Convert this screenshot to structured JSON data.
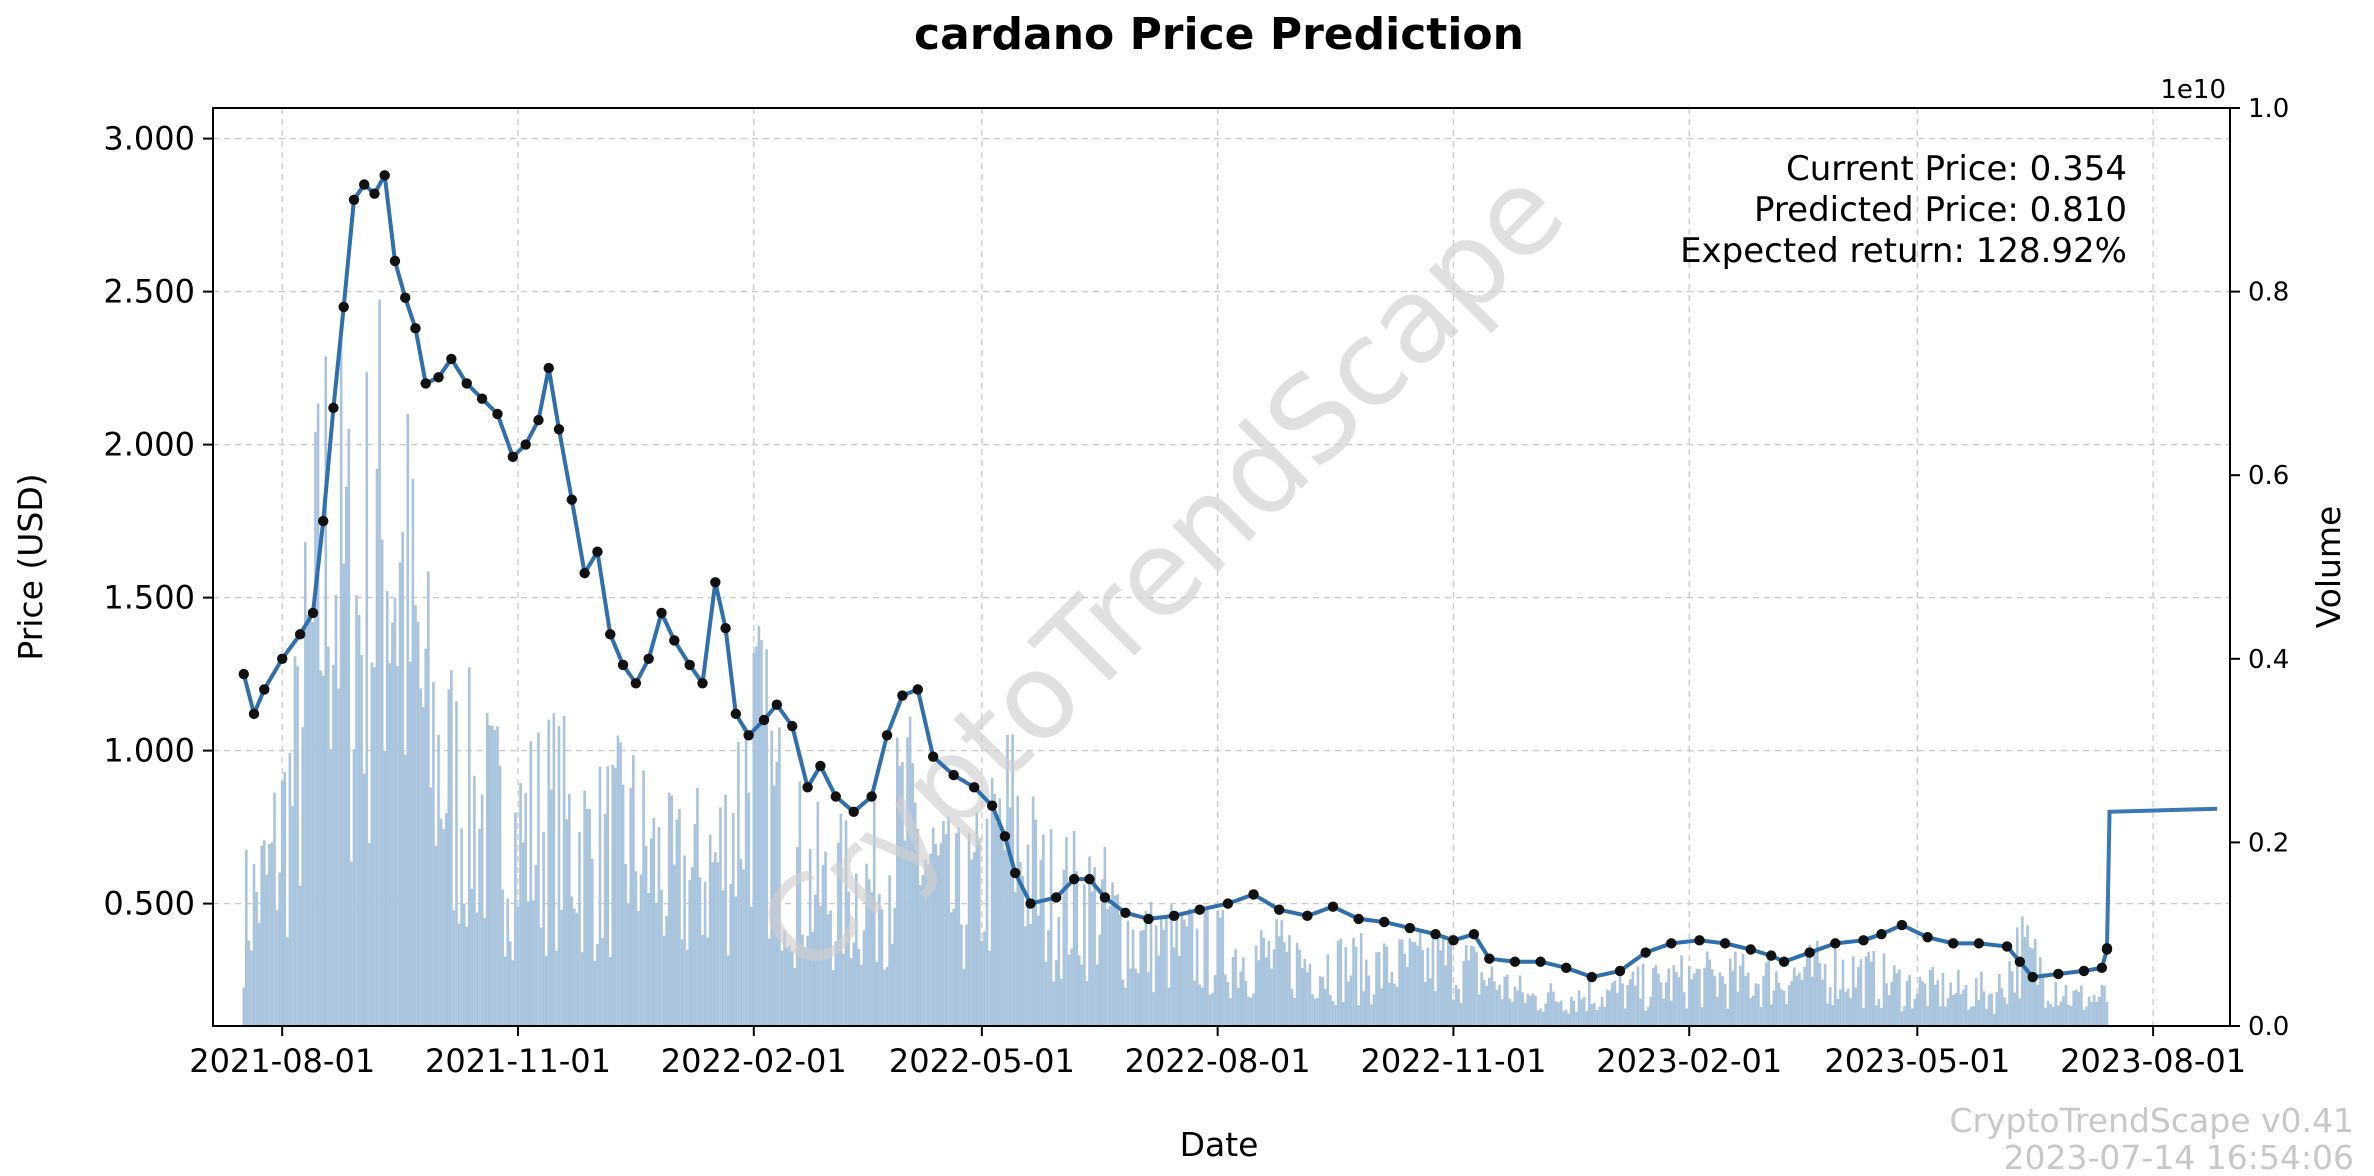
{
  "chart_data": {
    "type": "line",
    "title": "cardano Price Prediction",
    "xlabel": "Date",
    "ylabel": "Price (USD)",
    "y2label": "Volume",
    "y2_scale_label": "1e10",
    "ylim": [
      0.1,
      3.1
    ],
    "y2lim": [
      0,
      1.0
    ],
    "xlim": [
      "2021-07-05",
      "2023-08-31"
    ],
    "grid": true,
    "y_ticks": [
      "0.500",
      "1.000",
      "1.500",
      "2.000",
      "2.500",
      "3.000"
    ],
    "y2_ticks": [
      "0.0",
      "0.2",
      "0.4",
      "0.6",
      "0.8",
      "1.0"
    ],
    "x_ticks": [
      "2021-08-01",
      "2021-11-01",
      "2022-02-01",
      "2022-05-01",
      "2022-08-01",
      "2022-11-01",
      "2023-02-01",
      "2023-05-01",
      "2023-08-01"
    ],
    "annotations": {
      "current_price": "Current Price: 0.354",
      "predicted_price": "Predicted Price: 0.810",
      "expected_return": "Expected return: 128.92%"
    },
    "watermark": "CryptoTrendScape",
    "footer": {
      "version": "CryptoTrendScape v0.41",
      "timestamp": "2023-07-14 16:54:06"
    },
    "colors": {
      "line": "#2f6fad",
      "markers": "#111111",
      "volume": "#a9c4dc",
      "prediction": "#3a78b5",
      "grid": "#c9c9c9"
    },
    "series": [
      {
        "name": "Price",
        "x": [
          "2021-07-17",
          "2021-07-21",
          "2021-07-25",
          "2021-08-01",
          "2021-08-08",
          "2021-08-13",
          "2021-08-17",
          "2021-08-21",
          "2021-08-25",
          "2021-08-29",
          "2021-09-02",
          "2021-09-06",
          "2021-09-10",
          "2021-09-14",
          "2021-09-18",
          "2021-09-22",
          "2021-09-26",
          "2021-10-01",
          "2021-10-06",
          "2021-10-12",
          "2021-10-18",
          "2021-10-24",
          "2021-10-30",
          "2021-11-04",
          "2021-11-09",
          "2021-11-13",
          "2021-11-17",
          "2021-11-22",
          "2021-11-27",
          "2021-12-02",
          "2021-12-07",
          "2021-12-12",
          "2021-12-17",
          "2021-12-22",
          "2021-12-27",
          "2022-01-01",
          "2022-01-07",
          "2022-01-12",
          "2022-01-17",
          "2022-01-21",
          "2022-01-25",
          "2022-01-30",
          "2022-02-05",
          "2022-02-10",
          "2022-02-16",
          "2022-02-22",
          "2022-02-27",
          "2022-03-05",
          "2022-03-12",
          "2022-03-19",
          "2022-03-25",
          "2022-03-31",
          "2022-04-06",
          "2022-04-12",
          "2022-04-20",
          "2022-04-28",
          "2022-05-05",
          "2022-05-10",
          "2022-05-14",
          "2022-05-20",
          "2022-05-30",
          "2022-06-06",
          "2022-06-12",
          "2022-06-18",
          "2022-06-26",
          "2022-07-05",
          "2022-07-15",
          "2022-07-25",
          "2022-08-05",
          "2022-08-15",
          "2022-08-25",
          "2022-09-05",
          "2022-09-15",
          "2022-09-25",
          "2022-10-05",
          "2022-10-15",
          "2022-10-25",
          "2022-11-01",
          "2022-11-09",
          "2022-11-15",
          "2022-11-25",
          "2022-12-05",
          "2022-12-15",
          "2022-12-25",
          "2023-01-05",
          "2023-01-15",
          "2023-01-25",
          "2023-02-05",
          "2023-02-15",
          "2023-02-25",
          "2023-03-05",
          "2023-03-10",
          "2023-03-20",
          "2023-03-30",
          "2023-04-10",
          "2023-04-17",
          "2023-04-25",
          "2023-05-05",
          "2023-05-15",
          "2023-05-25",
          "2023-06-05",
          "2023-06-10",
          "2023-06-15",
          "2023-06-25",
          "2023-07-05",
          "2023-07-12",
          "2023-07-14"
        ],
        "values": [
          1.25,
          1.12,
          1.2,
          1.3,
          1.38,
          1.45,
          1.75,
          2.12,
          2.45,
          2.8,
          2.85,
          2.82,
          2.88,
          2.6,
          2.48,
          2.38,
          2.2,
          2.22,
          2.28,
          2.2,
          2.15,
          2.1,
          1.96,
          2.0,
          2.08,
          2.25,
          2.05,
          1.82,
          1.58,
          1.65,
          1.38,
          1.28,
          1.22,
          1.3,
          1.45,
          1.36,
          1.28,
          1.22,
          1.55,
          1.4,
          1.12,
          1.05,
          1.1,
          1.15,
          1.08,
          0.88,
          0.95,
          0.85,
          0.8,
          0.85,
          1.05,
          1.18,
          1.2,
          0.98,
          0.92,
          0.88,
          0.82,
          0.72,
          0.6,
          0.5,
          0.52,
          0.58,
          0.58,
          0.52,
          0.47,
          0.45,
          0.46,
          0.48,
          0.5,
          0.53,
          0.48,
          0.46,
          0.49,
          0.45,
          0.44,
          0.42,
          0.4,
          0.38,
          0.4,
          0.32,
          0.31,
          0.31,
          0.29,
          0.26,
          0.28,
          0.34,
          0.37,
          0.38,
          0.37,
          0.35,
          0.33,
          0.31,
          0.34,
          0.37,
          0.38,
          0.4,
          0.43,
          0.39,
          0.37,
          0.37,
          0.36,
          0.31,
          0.26,
          0.27,
          0.28,
          0.29,
          0.35
        ]
      },
      {
        "name": "Prediction",
        "x": [
          "2023-07-14",
          "2023-07-15",
          "2023-08-26"
        ],
        "values": [
          0.354,
          0.8,
          0.81
        ]
      }
    ],
    "volume": {
      "x": [
        "2021-07-17",
        "2021-07-27",
        "2021-08-06",
        "2021-08-13",
        "2021-08-20",
        "2021-08-28",
        "2021-09-05",
        "2021-09-12",
        "2021-09-20",
        "2021-09-28",
        "2021-10-08",
        "2021-10-20",
        "2021-11-01",
        "2021-11-15",
        "2021-12-01",
        "2021-12-15",
        "2022-01-01",
        "2022-01-20",
        "2022-02-01",
        "2022-02-15",
        "2022-03-01",
        "2022-03-20",
        "2022-04-01",
        "2022-04-20",
        "2022-05-01",
        "2022-05-12",
        "2022-05-25",
        "2022-06-15",
        "2022-07-01",
        "2022-08-01",
        "2022-09-01",
        "2022-10-01",
        "2022-11-01",
        "2022-11-15",
        "2022-12-01",
        "2023-01-01",
        "2023-02-01",
        "2023-03-01",
        "2023-04-01",
        "2023-05-01",
        "2023-06-01",
        "2023-06-10",
        "2023-07-01",
        "2023-07-14"
      ],
      "values": [
        0.12,
        0.16,
        0.26,
        0.4,
        0.55,
        0.42,
        0.48,
        0.55,
        0.42,
        0.3,
        0.25,
        0.22,
        0.2,
        0.22,
        0.18,
        0.2,
        0.15,
        0.18,
        0.3,
        0.18,
        0.14,
        0.15,
        0.22,
        0.13,
        0.15,
        0.22,
        0.14,
        0.13,
        0.09,
        0.08,
        0.07,
        0.06,
        0.07,
        0.05,
        0.03,
        0.035,
        0.05,
        0.05,
        0.06,
        0.04,
        0.035,
        0.08,
        0.03,
        0.03
      ]
    }
  }
}
